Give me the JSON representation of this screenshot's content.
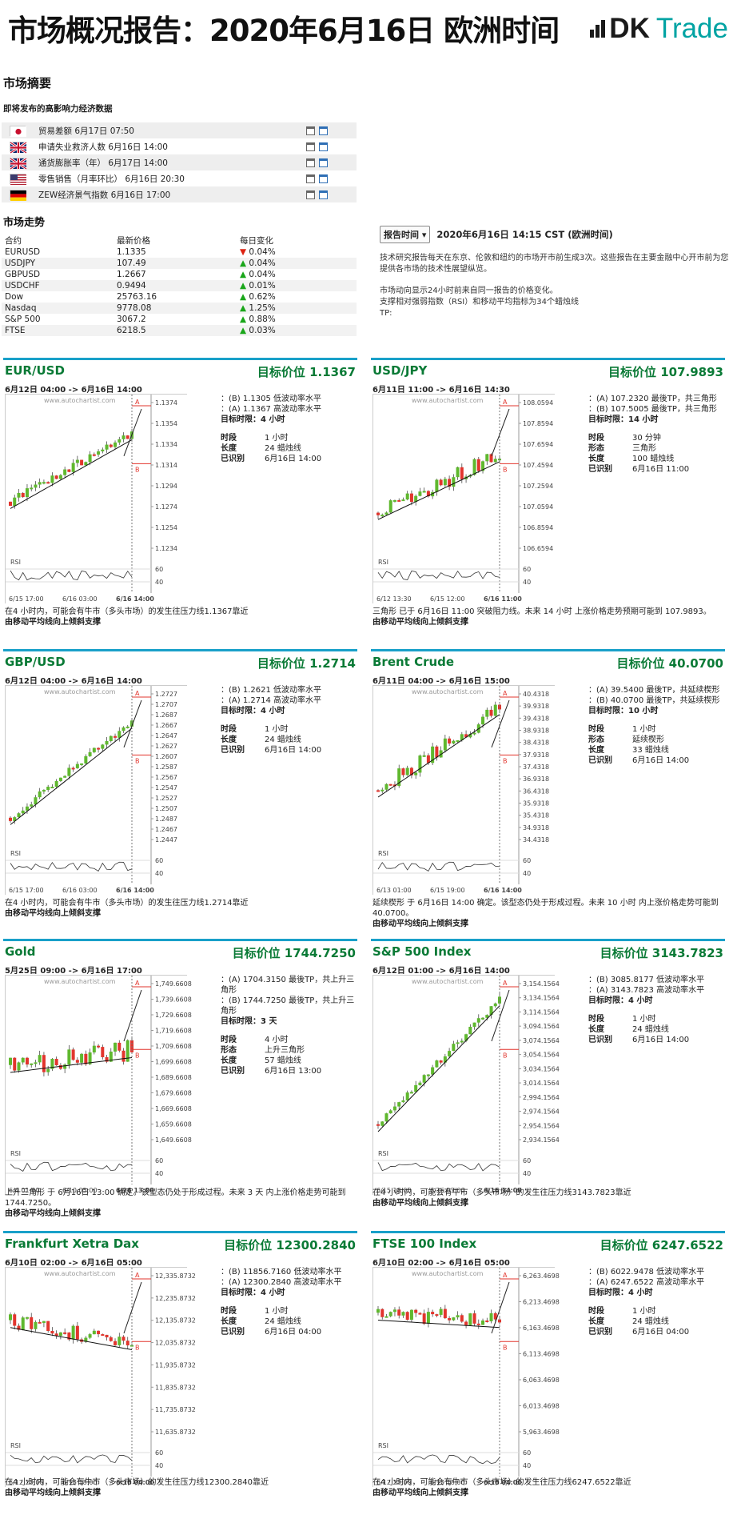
{
  "header": {
    "title": "市场概况报告：2020年6月16日 欧洲时间",
    "logo_dk": "DK",
    "logo_trade": "Trade"
  },
  "summary": {
    "title": "市场摘要",
    "events_title": "即将发布的高影响力经济数据",
    "events": [
      {
        "flag": "jp",
        "name": "贸易差额",
        "date": "6月17日 07:50"
      },
      {
        "flag": "uk",
        "name": "申请失业救济人数",
        "date": "6月16日 14:00"
      },
      {
        "flag": "uk",
        "name": "通货膨胀率（年）",
        "date": "6月17日 14:00"
      },
      {
        "flag": "us",
        "name": "零售销售（月率环比）",
        "date": "6月16日 20:30"
      },
      {
        "flag": "de",
        "name": "ZEW经济景气指数",
        "date": "6月16日 17:00"
      }
    ]
  },
  "market": {
    "title": "市场走势",
    "col_contract": "合约",
    "col_price": "最新价格",
    "col_change": "每日变化",
    "rows": [
      {
        "name": "EURUSD",
        "price": "1.1335",
        "dir": "down",
        "change": "0.04%"
      },
      {
        "name": "USDJPY",
        "price": "107.49",
        "dir": "up",
        "change": "0.04%"
      },
      {
        "name": "GBPUSD",
        "price": "1.2667",
        "dir": "up",
        "change": "0.04%"
      },
      {
        "name": "USDCHF",
        "price": "0.9494",
        "dir": "up",
        "change": "0.01%"
      },
      {
        "name": "Dow",
        "price": "25763.16",
        "dir": "up",
        "change": "0.62%"
      },
      {
        "name": "Nasdaq",
        "price": "9778.08",
        "dir": "up",
        "change": "1.25%"
      },
      {
        "name": "S&P 500",
        "price": "3067.2",
        "dir": "up",
        "change": "0.88%"
      },
      {
        "name": "FTSE",
        "price": "6218.5",
        "dir": "up",
        "change": "0.03%"
      }
    ]
  },
  "report": {
    "button": "报告时间",
    "time": "2020年6月16日 14:15 CST (欧洲时间)",
    "p1": "技术研究报告每天在东京、伦敦和纽约的市场开市前生成3次。这些报告在主要金融中心开市前为您提供各市场的技术性展望纵览。",
    "p2a": "市场动向显示24小时前来自同一报告的价格变化。",
    "p2b": "支撑相对强弱指数（RSI）和移动平均指标为34个蜡烛线",
    "p2c": "TP:"
  },
  "panels": [
    {
      "title": "EUR/USD",
      "target": "目标价位 1.1367",
      "range": "6月12日 04:00 -> 6月16日 14:00",
      "lines": [
        "：(B) 1.1305 低波动率水平",
        "：(A) 1.1367 高波动率水平"
      ],
      "period": "目标时限：4 小时",
      "kv": [
        [
          "时段",
          "1 小时"
        ],
        [
          "长度",
          "24 蜡烛线"
        ],
        [
          "已识别",
          "6月16日 14:00"
        ]
      ],
      "desc": "在4 小时内，可能会有牛市（多头市场）的发生往压力线1.1367靠近",
      "desc2": "由移动平均线向上倾斜支撑",
      "yticks": [
        "1.1374",
        "1.1354",
        "1.1334",
        "1.1314",
        "1.1294",
        "1.1274",
        "1.1254",
        "1.1234"
      ],
      "xticks": [
        "6/15 17:00",
        "6/16 03:00",
        "6/16 14:00"
      ],
      "rsi": [
        "60",
        "40"
      ]
    },
    {
      "title": "USD/JPY",
      "target": "目标价位 107.9893",
      "range": "6月11日 11:00 -> 6月16日 14:30",
      "lines": [
        "：(A) 107.2320 最後TP，共三角形",
        "：(B) 107.5005 最後TP，共三角形"
      ],
      "period": "目标时限：14 小时",
      "kv": [
        [
          "时段",
          "30 分钟"
        ],
        [
          "形态",
          "三角形"
        ],
        [
          "长度",
          "100 蜡烛线"
        ],
        [
          "已识别",
          "6月16日 11:00"
        ]
      ],
      "desc": "三角形 已于 6月16日 11:00 突破阻力线。未来 14 小时 上涨价格走势预期可能到 107.9893。",
      "desc2": "由移动平均线向上倾斜支撑",
      "yticks": [
        "108.0594",
        "107.8594",
        "107.6594",
        "107.4594",
        "107.2594",
        "107.0594",
        "106.8594",
        "106.6594"
      ],
      "xticks": [
        "6/12 13:30",
        "6/15 12:00",
        "6/16 11:00"
      ],
      "rsi": [
        "60",
        "40"
      ]
    },
    {
      "title": "GBP/USD",
      "target": "目标价位 1.2714",
      "range": "6月12日 04:00 -> 6月16日 14:00",
      "lines": [
        "：(B) 1.2621 低波动率水平",
        "：(A) 1.2714 高波动率水平"
      ],
      "period": "目标时限：4 小时",
      "kv": [
        [
          "时段",
          "1 小时"
        ],
        [
          "长度",
          "24 蜡烛线"
        ],
        [
          "已识别",
          "6月16日 14:00"
        ]
      ],
      "desc": "在4 小时内，可能会有牛市（多头市场）的发生往压力线1.2714靠近",
      "desc2": "由移动平均线向上倾斜支撑",
      "yticks": [
        "1.2727",
        "1.2707",
        "1.2687",
        "1.2667",
        "1.2647",
        "1.2627",
        "1.2607",
        "1.2587",
        "1.2567",
        "1.2547",
        "1.2527",
        "1.2507",
        "1.2487",
        "1.2467",
        "1.2447"
      ],
      "xticks": [
        "6/15 17:00",
        "6/16 03:00",
        "6/16 14:00"
      ],
      "rsi": [
        "60",
        "40"
      ]
    },
    {
      "title": "Brent Crude",
      "target": "目标价位 40.0700",
      "range": "6月11日 04:00 -> 6月16日 15:00",
      "lines": [
        "：(A) 39.5400 最後TP，共延续楔形",
        "：(B) 40.0700 最後TP，共延续楔形"
      ],
      "period": "目标时限：10 小时",
      "kv": [
        [
          "时段",
          "1 小时"
        ],
        [
          "形态",
          "延续楔形"
        ],
        [
          "长度",
          "33 蜡烛线"
        ],
        [
          "已识别",
          "6月16日 14:00"
        ]
      ],
      "desc": "延续楔形 于 6月16日 14:00 确定。该型态仍处于形成过程。未来 10 小时 内上涨价格走势可能到 40.0700。",
      "desc2": "由移动平均线向上倾斜支撑",
      "yticks": [
        "40.4318",
        "39.9318",
        "39.4318",
        "38.9318",
        "38.4318",
        "37.9318",
        "37.4318",
        "36.9318",
        "36.4318",
        "35.9318",
        "35.4318",
        "34.9318",
        "34.4318"
      ],
      "xticks": [
        "6/13 01:00",
        "6/15 19:00",
        "6/16 14:00"
      ],
      "rsi": [
        "60",
        "40"
      ]
    },
    {
      "title": "Gold",
      "target": "目标价位 1744.7250",
      "range": "5月25日 09:00 -> 6月16日 17:00",
      "lines": [
        "：(A) 1704.3150 最後TP，共上升三角形",
        "：(B) 1744.7250 最後TP，共上升三角形"
      ],
      "period": "目标时限：3 天",
      "kv": [
        [
          "时段",
          "4 小时"
        ],
        [
          "形态",
          "上升三角形"
        ],
        [
          "长度",
          "57 蜡烛线"
        ],
        [
          "已识别",
          "6月16日 13:00"
        ]
      ],
      "desc": "上升三角形 于 6月16日 13:00 确定。该型态仍处于形成过程。未来 3 天 内上涨价格走势可能到 1744.7250。",
      "desc2": "由移动平均线向上倾斜支撑",
      "yticks": [
        "1,749.6608",
        "1,739.6608",
        "1,729.6608",
        "1,719.6608",
        "1,709.6608",
        "1,699.6608",
        "1,689.6608",
        "1,679.6608",
        "1,669.6608",
        "1,659.6608",
        "1,649.6608"
      ],
      "xticks": [
        "6/4 01:00",
        "6/10 05:00",
        "6/16 13:00"
      ],
      "rsi": [
        "60",
        "40"
      ]
    },
    {
      "title": "S&P 500 Index",
      "target": "目标价位 3143.7823",
      "range": "6月12日 01:00 -> 6月16日 14:00",
      "lines": [
        "：(B) 3085.8177 低波动率水平",
        "：(A) 3143.7823 高波动率水平"
      ],
      "period": "目标时限：4 小时",
      "kv": [
        [
          "时段",
          "1 小时"
        ],
        [
          "长度",
          "24 蜡烛线"
        ],
        [
          "已识别",
          "6月16日 14:00"
        ]
      ],
      "desc": "在4 小时内，可能会有牛市（多头市场）的发生往压力线3143.7823靠近",
      "desc2": "由移动平均线向上倾斜支撑",
      "yticks": [
        "3,154.1564",
        "3,134.1564",
        "3,114.1564",
        "3,094.1564",
        "3,074.1564",
        "3,054.1564",
        "3,034.1564",
        "3,014.1564",
        "2,994.1564",
        "2,974.1564",
        "2,954.1564",
        "2,934.1564"
      ],
      "xticks": [
        "6/15 18:00",
        "6/16 03:00",
        "6/16 14:00"
      ],
      "rsi": [
        "60",
        "40"
      ]
    },
    {
      "title": "Frankfurt Xetra Dax",
      "target": "目标价位 12300.2840",
      "range": "6月10日 02:00 -> 6月16日 05:00",
      "lines": [
        "：(B) 11856.7160 低波动率水平",
        "：(A) 12300.2840 高波动率水平"
      ],
      "period": "目标时限：4 小时",
      "kv": [
        [
          "时段",
          "1 小时"
        ],
        [
          "长度",
          "24 蜡烛线"
        ],
        [
          "已识别",
          "6月16日 04:00"
        ]
      ],
      "desc": "在4 小时内，可能会有牛市（多头市场）的发生往压力线12300.2840靠近",
      "desc2": "由移动平均线向上倾斜支撑",
      "yticks": [
        "12,335.8732",
        "12,235.8732",
        "12,135.8732",
        "12,035.8732",
        "11,935.8732",
        "11,835.8732",
        "11,735.8732",
        "11,635.8732"
      ],
      "xticks": [
        "6/12 23:00",
        "6/15 18:00",
        "6/16 04:00"
      ],
      "rsi": [
        "60",
        "40"
      ]
    },
    {
      "title": "FTSE 100 Index",
      "target": "目标价位 6247.6522",
      "range": "6月10日 02:00 -> 6月16日 05:00",
      "lines": [
        "：(B) 6022.9478 低波动率水平",
        "：(A) 6247.6522 高波动率水平"
      ],
      "period": "目标时限：4 小时",
      "kv": [
        [
          "时段",
          "1 小时"
        ],
        [
          "长度",
          "24 蜡烛线"
        ],
        [
          "已识别",
          "6月16日 04:00"
        ]
      ],
      "desc": "在4 小时内，可能会有牛市（多头市场）的发生往压力线6247.6522靠近",
      "desc2": "由移动平均线向上倾斜支撑",
      "yticks": [
        "6,263.4698",
        "6,213.4698",
        "6,163.4698",
        "6,113.4698",
        "6,063.4698",
        "6,013.4698",
        "5,963.4698"
      ],
      "xticks": [
        "6/12 23:00",
        "6/15 18:00",
        "6/16 04:00"
      ],
      "rsi": [
        "60",
        "40"
      ]
    }
  ],
  "watermark": "www.autochartist.com",
  "colors": {
    "green_text": "#0a7a36",
    "panel_rule": "#19a0c9",
    "candle_up": "#5fb82e",
    "candle_down": "#e2352d",
    "pattern_red": "#e2352d",
    "pattern_green": "#6bb82a"
  }
}
